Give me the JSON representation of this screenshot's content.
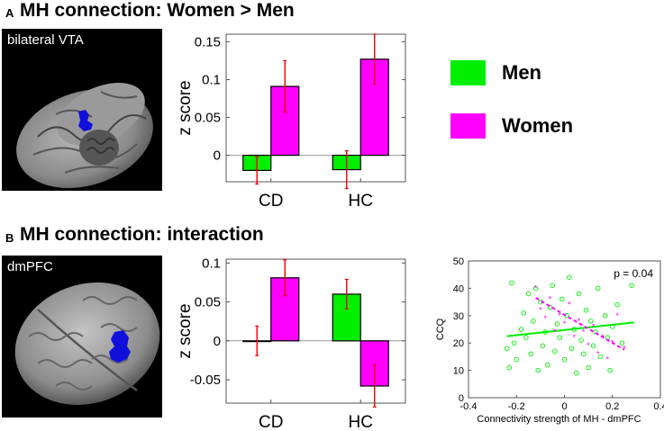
{
  "panel_a": {
    "letter": "A",
    "title": "MH connection: Women > Men",
    "brain_label": "bilateral VTA"
  },
  "panel_b": {
    "letter": "B",
    "title": "MH connection: interaction",
    "brain_label": "dmPFC"
  },
  "legend": {
    "items": [
      {
        "label": "Men",
        "color": "#00ee00"
      },
      {
        "label": "Women",
        "color": "#ff00ff"
      }
    ]
  },
  "colors": {
    "men": "#00ee00",
    "women": "#ff00ff",
    "error_bar": "#ee0000",
    "brain_roi": "#1010dd"
  },
  "chart_data": [
    {
      "id": "barA",
      "type": "bar",
      "ylabel": "z score",
      "categories": [
        "CD",
        "HC"
      ],
      "ylim": [
        -0.035,
        0.16
      ],
      "yticks": [
        0,
        0.05,
        0.1,
        0.15
      ],
      "ytick_labels": [
        "0",
        "0.05",
        "0.1",
        "0.15"
      ],
      "series": [
        {
          "name": "Men",
          "values": [
            -0.02,
            -0.019
          ],
          "errors": [
            0.018,
            0.025
          ]
        },
        {
          "name": "Women",
          "values": [
            0.091,
            0.127
          ],
          "errors": [
            0.034,
            0.033
          ]
        }
      ]
    },
    {
      "id": "barB",
      "type": "bar",
      "ylabel": "z score",
      "categories": [
        "CD",
        "HC"
      ],
      "ylim": [
        -0.08,
        0.105
      ],
      "yticks": [
        -0.05,
        0,
        0.05,
        0.1
      ],
      "ytick_labels": [
        "-0.05",
        "0",
        "0.05",
        "0.1"
      ],
      "series": [
        {
          "name": "Men",
          "values": [
            0.0,
            0.06
          ],
          "errors": [
            0.019,
            0.019
          ]
        },
        {
          "name": "Women",
          "values": [
            0.081,
            -0.058
          ],
          "errors": [
            0.023,
            0.027
          ]
        }
      ]
    },
    {
      "id": "scatter",
      "type": "scatter",
      "xlabel": "Connectivity strength of MH - dmPFC",
      "ylabel": "CCQ",
      "annotation": "p = 0.04",
      "xlim": [
        -0.4,
        0.4
      ],
      "ylim": [
        0,
        50
      ],
      "xticks": [
        -0.4,
        -0.2,
        0,
        0.2,
        0.4
      ],
      "xtick_labels": [
        "-0.4",
        "-0.2",
        "0",
        "0.2",
        "0.4"
      ],
      "yticks": [
        0,
        10,
        20,
        30,
        40,
        50
      ],
      "ytick_labels": [
        "0",
        "10",
        "20",
        "30",
        "40",
        "50"
      ],
      "series": [
        {
          "name": "Men",
          "marker": "circle",
          "points": [
            [
              -0.24,
              18
            ],
            [
              -0.23,
              11
            ],
            [
              -0.22,
              42
            ],
            [
              -0.21,
              20
            ],
            [
              -0.2,
              14
            ],
            [
              -0.18,
              25
            ],
            [
              -0.17,
              31
            ],
            [
              -0.16,
              22
            ],
            [
              -0.15,
              38
            ],
            [
              -0.14,
              16
            ],
            [
              -0.13,
              28
            ],
            [
              -0.12,
              40
            ],
            [
              -0.11,
              10
            ],
            [
              -0.1,
              35
            ],
            [
              -0.09,
              19
            ],
            [
              -0.08,
              24
            ],
            [
              -0.07,
              12
            ],
            [
              -0.06,
              33
            ],
            [
              -0.05,
              41
            ],
            [
              -0.04,
              17
            ],
            [
              -0.03,
              27
            ],
            [
              -0.02,
              22
            ],
            [
              -0.01,
              36
            ],
            [
              0.0,
              14
            ],
            [
              0.01,
              30
            ],
            [
              0.02,
              44
            ],
            [
              0.03,
              18
            ],
            [
              0.04,
              25
            ],
            [
              0.05,
              9
            ],
            [
              0.06,
              38
            ],
            [
              0.07,
              21
            ],
            [
              0.08,
              16
            ],
            [
              0.09,
              32
            ],
            [
              0.1,
              11
            ],
            [
              0.11,
              28
            ],
            [
              0.12,
              19
            ],
            [
              0.13,
              24
            ],
            [
              0.14,
              40
            ],
            [
              0.15,
              15
            ],
            [
              0.17,
              30
            ],
            [
              0.18,
              22
            ],
            [
              0.19,
              10
            ],
            [
              0.2,
              26
            ],
            [
              0.22,
              34
            ],
            [
              0.24,
              20
            ],
            [
              0.28,
              41
            ]
          ],
          "fit": {
            "x": [
              -0.24,
              0.29
            ],
            "y": [
              22.5,
              27.5
            ]
          }
        },
        {
          "name": "Women",
          "marker": "star",
          "points": [
            [
              -0.12,
              40
            ],
            [
              -0.1,
              32
            ],
            [
              -0.08,
              29
            ],
            [
              -0.06,
              36
            ],
            [
              -0.04,
              24
            ],
            [
              -0.02,
              30
            ],
            [
              0.0,
              27
            ],
            [
              0.02,
              34
            ],
            [
              0.04,
              22
            ],
            [
              0.06,
              28
            ],
            [
              0.08,
              24
            ],
            [
              0.1,
              19
            ],
            [
              0.12,
              26
            ],
            [
              0.14,
              16
            ],
            [
              0.16,
              22
            ],
            [
              0.18,
              14
            ],
            [
              0.2,
              20
            ],
            [
              0.22,
              30
            ],
            [
              0.25,
              18
            ]
          ],
          "fit": {
            "x": [
              -0.12,
              0.25
            ],
            "y": [
              36.5,
              17.5
            ]
          }
        }
      ]
    }
  ]
}
